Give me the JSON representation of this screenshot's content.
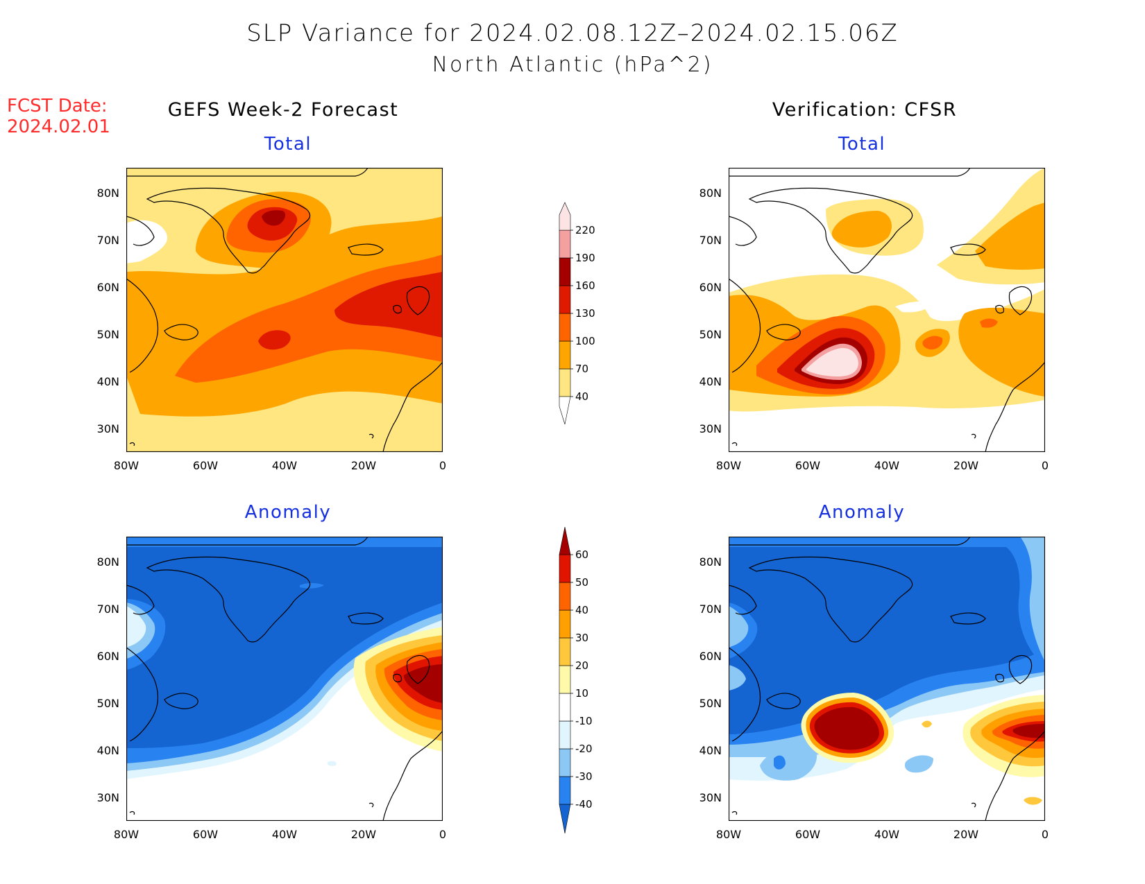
{
  "title_line1": "SLP Variance for 2024.02.08.12Z–2024.02.15.06Z",
  "title_line2": "North Atlantic (hPa^2)",
  "fcst_label": "FCST Date:",
  "fcst_date": "2024.02.01",
  "left_column_title": "GEFS Week-2 Forecast",
  "right_column_title": "Verification: CFSR",
  "panels": [
    {
      "id": "forecast-total",
      "subtitle": "Total"
    },
    {
      "id": "verification-total",
      "subtitle": "Total"
    },
    {
      "id": "forecast-anomaly",
      "subtitle": "Anomaly"
    },
    {
      "id": "verification-anomaly",
      "subtitle": "Anomaly"
    }
  ],
  "axes": {
    "lat_labels": [
      "80N",
      "70N",
      "60N",
      "50N",
      "40N",
      "30N"
    ],
    "lon_labels": [
      "80W",
      "60W",
      "40W",
      "20W",
      "0"
    ]
  },
  "total_colorbar": {
    "levels": [
      "40",
      "70",
      "100",
      "130",
      "160",
      "190",
      "220"
    ],
    "colors": [
      "#ffe680",
      "#ffa500",
      "#ff6400",
      "#e01a00",
      "#a50000",
      "#f4a0a0",
      "#fde4e4"
    ]
  },
  "anomaly_colorbar": {
    "levels": [
      "-40",
      "-30",
      "-20",
      "-10",
      "10",
      "20",
      "30",
      "40",
      "50",
      "60"
    ],
    "colors": [
      "#1464d2",
      "#2882f0",
      "#8cc8f5",
      "#e1f5ff",
      "#ffffff",
      "#fffaaa",
      "#ffc83c",
      "#ffa000",
      "#ff6400",
      "#e11400",
      "#a50000"
    ]
  }
}
